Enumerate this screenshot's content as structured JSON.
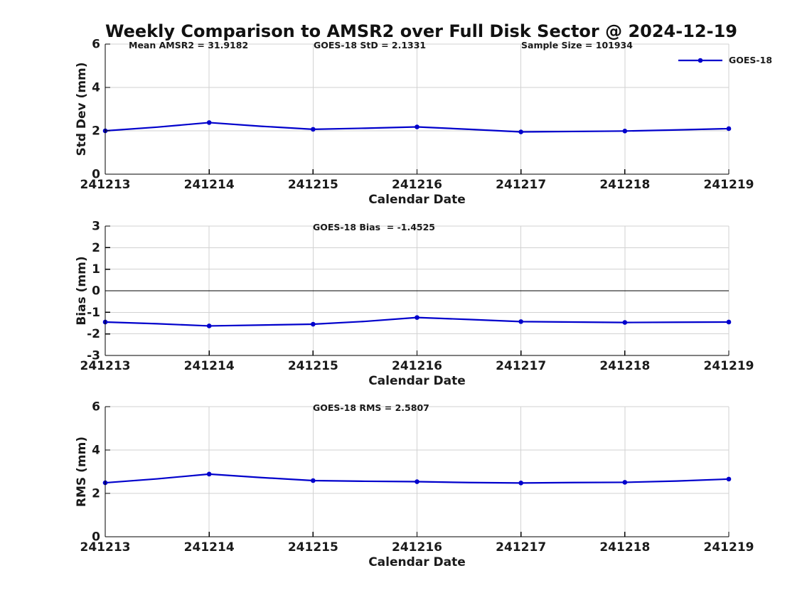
{
  "figure": {
    "title": "Weekly Comparison to AMSR2 over Full Disk Sector @ 2024-12-19"
  },
  "legend": {
    "label": "GOES-18"
  },
  "stats": {
    "mean_amsr2": 31.9182,
    "goes18_std": 2.1331,
    "sample_size": 101934,
    "goes18_bias": -1.4525,
    "goes18_rms": 2.5807
  },
  "colors": {
    "line": "#0000CC",
    "marker": "#0000CC",
    "grid": "#D2D2D2",
    "axis": "#000000",
    "zero_line": "#000000",
    "text": "#1A1A1A"
  },
  "chart_data": [
    {
      "type": "line",
      "ylabel": "Std Dev (mm)",
      "xlabel": "Calendar Date",
      "ylim": [
        0,
        6
      ],
      "yticks": [
        0,
        2,
        4,
        6
      ],
      "xlim": [
        241213,
        241219
      ],
      "xticks": [
        241213,
        241214,
        241215,
        241216,
        241217,
        241218,
        241219
      ],
      "grid": true,
      "zero_line": false,
      "annotations": [
        "Mean AMSR2 = 31.9182",
        "GOES-18 StD = 2.1331",
        "Sample Size = 101934"
      ],
      "series": [
        {
          "name": "GOES-18",
          "x": [
            241213,
            241213.5,
            241214,
            241214.5,
            241215,
            241215.5,
            241216,
            241216.5,
            241217,
            241217.5,
            241218,
            241218.5,
            241219
          ],
          "values": [
            2.0,
            2.17,
            2.38,
            2.21,
            2.07,
            2.12,
            2.18,
            2.07,
            1.95,
            1.97,
            1.99,
            2.04,
            2.1
          ],
          "markers_at_integer_days": true
        }
      ],
      "daily_values": {
        "x": [
          241213,
          241214,
          241215,
          241216,
          241217,
          241218,
          241219
        ],
        "values": [
          2.0,
          2.38,
          2.07,
          2.18,
          1.95,
          1.99,
          2.1
        ]
      }
    },
    {
      "type": "line",
      "ylabel": "Bias (mm)",
      "xlabel": "Calendar Date",
      "ylim": [
        -3,
        3
      ],
      "yticks": [
        -3,
        -2,
        -1,
        0,
        1,
        2,
        3
      ],
      "xlim": [
        241213,
        241219
      ],
      "xticks": [
        241213,
        241214,
        241215,
        241216,
        241217,
        241218,
        241219
      ],
      "grid": true,
      "zero_line": true,
      "annotations": [
        "GOES-18 Bias  = -1.4525"
      ],
      "series": [
        {
          "name": "GOES-18",
          "x": [
            241213,
            241213.5,
            241214,
            241214.5,
            241215,
            241215.5,
            241216,
            241216.5,
            241217,
            241217.5,
            241218,
            241218.5,
            241219
          ],
          "values": [
            -1.45,
            -1.53,
            -1.63,
            -1.59,
            -1.55,
            -1.42,
            -1.24,
            -1.33,
            -1.43,
            -1.45,
            -1.47,
            -1.46,
            -1.45
          ],
          "markers_at_integer_days": true
        }
      ],
      "daily_values": {
        "x": [
          241213,
          241214,
          241215,
          241216,
          241217,
          241218,
          241219
        ],
        "values": [
          -1.45,
          -1.63,
          -1.55,
          -1.24,
          -1.43,
          -1.47,
          -1.45
        ]
      }
    },
    {
      "type": "line",
      "ylabel": "RMS (mm)",
      "xlabel": "Calendar Date",
      "ylim": [
        0,
        6
      ],
      "yticks": [
        0,
        2,
        4,
        6
      ],
      "xlim": [
        241213,
        241219
      ],
      "xticks": [
        241213,
        241214,
        241215,
        241216,
        241217,
        241218,
        241219
      ],
      "grid": true,
      "zero_line": false,
      "annotations": [
        "GOES-18 RMS = 2.5807"
      ],
      "series": [
        {
          "name": "GOES-18",
          "x": [
            241213,
            241213.5,
            241214,
            241214.5,
            241215,
            241215.5,
            241216,
            241216.5,
            241217,
            241217.5,
            241218,
            241218.5,
            241219
          ],
          "values": [
            2.49,
            2.67,
            2.89,
            2.73,
            2.59,
            2.56,
            2.54,
            2.5,
            2.48,
            2.5,
            2.51,
            2.57,
            2.66
          ],
          "markers_at_integer_days": true
        }
      ],
      "daily_values": {
        "x": [
          241213,
          241214,
          241215,
          241216,
          241217,
          241218,
          241219
        ],
        "values": [
          2.49,
          2.89,
          2.59,
          2.54,
          2.48,
          2.51,
          2.66
        ]
      }
    }
  ]
}
